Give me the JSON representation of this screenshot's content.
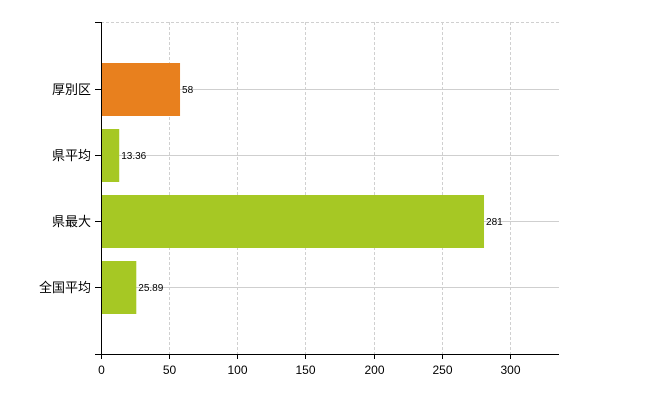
{
  "chart_data": {
    "type": "bar",
    "orientation": "horizontal",
    "categories": [
      "厚別区",
      "県平均",
      "県最大",
      "全国平均"
    ],
    "values": [
      58,
      13.36,
      281,
      25.89
    ],
    "value_labels": [
      "58",
      "13.36",
      "281",
      "25.89"
    ],
    "bar_colors": [
      "#E8801E",
      "#A6C824",
      "#A6C824",
      "#A6C824"
    ],
    "title": "",
    "xlabel": "",
    "ylabel": "",
    "xlim": [
      0,
      336
    ],
    "xticks": [
      0,
      50,
      100,
      150,
      200,
      250,
      300
    ],
    "xtick_labels": [
      "0",
      "50",
      "100",
      "150",
      "200",
      "250",
      "300"
    ],
    "grid": true,
    "legend": "none"
  }
}
